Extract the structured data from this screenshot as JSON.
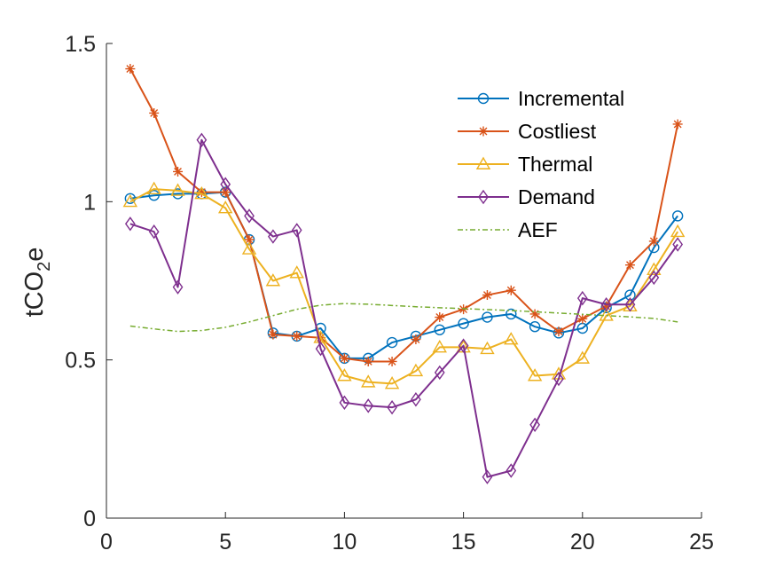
{
  "chart_data": {
    "type": "line",
    "xlabel": "",
    "ylabel_main": "tCO",
    "ylabel_sub": "2",
    "ylabel_tail": "e",
    "xlim": [
      0,
      25
    ],
    "ylim": [
      0,
      1.5
    ],
    "xticks": [
      0,
      5,
      10,
      15,
      20,
      25
    ],
    "yticks": [
      0,
      0.5,
      1,
      1.5
    ],
    "ytick_labels": [
      "0",
      "0.5",
      "1",
      "1.5"
    ],
    "grid": false,
    "legend_position": "top-right",
    "series": [
      {
        "name": "Incremental",
        "color": "#0072BD",
        "marker": "circle",
        "line": "solid",
        "x": [
          1,
          2,
          3,
          4,
          5,
          6,
          7,
          8,
          9,
          10,
          11,
          12,
          13,
          14,
          15,
          16,
          17,
          18,
          19,
          20,
          21,
          22,
          23,
          24
        ],
        "values": [
          1.01,
          1.02,
          1.025,
          1.025,
          1.03,
          0.88,
          0.585,
          0.575,
          0.6,
          0.505,
          0.505,
          0.555,
          0.575,
          0.595,
          0.615,
          0.635,
          0.645,
          0.605,
          0.585,
          0.6,
          0.665,
          0.705,
          0.855,
          0.955
        ]
      },
      {
        "name": "Costliest",
        "color": "#D95319",
        "marker": "asterisk",
        "line": "solid",
        "x": [
          1,
          2,
          3,
          4,
          5,
          6,
          7,
          8,
          9,
          10,
          11,
          12,
          13,
          14,
          15,
          16,
          17,
          18,
          19,
          20,
          21,
          22,
          23,
          24
        ],
        "values": [
          1.42,
          1.28,
          1.095,
          1.03,
          1.03,
          0.88,
          0.58,
          0.575,
          0.57,
          0.505,
          0.495,
          0.495,
          0.565,
          0.635,
          0.66,
          0.705,
          0.72,
          0.645,
          0.59,
          0.63,
          0.67,
          0.8,
          0.875,
          1.245
        ]
      },
      {
        "name": "Thermal",
        "color": "#EDB120",
        "marker": "triangle",
        "line": "solid",
        "x": [
          1,
          2,
          3,
          4,
          5,
          6,
          7,
          8,
          9,
          10,
          11,
          12,
          13,
          14,
          15,
          16,
          17,
          18,
          19,
          20,
          21,
          22,
          23,
          24
        ],
        "values": [
          1.0,
          1.04,
          1.035,
          1.025,
          0.98,
          0.85,
          0.75,
          0.775,
          0.57,
          0.45,
          0.43,
          0.425,
          0.465,
          0.54,
          0.54,
          0.535,
          0.565,
          0.45,
          0.455,
          0.505,
          0.64,
          0.67,
          0.785,
          0.905
        ]
      },
      {
        "name": "Demand",
        "color": "#7E2F8E",
        "marker": "diamond",
        "line": "solid",
        "x": [
          1,
          2,
          3,
          4,
          5,
          6,
          7,
          8,
          9,
          10,
          11,
          12,
          13,
          14,
          15,
          16,
          17,
          18,
          19,
          20,
          21,
          22,
          23,
          24
        ],
        "values": [
          0.93,
          0.905,
          0.73,
          1.195,
          1.055,
          0.955,
          0.89,
          0.91,
          0.535,
          0.365,
          0.355,
          0.35,
          0.375,
          0.46,
          0.545,
          0.13,
          0.15,
          0.295,
          0.44,
          0.695,
          0.675,
          0.675,
          0.76,
          0.865
        ]
      },
      {
        "name": "AEF",
        "color": "#77AC30",
        "marker": "none",
        "line": "dashdot",
        "x": [
          1,
          2,
          3,
          4,
          5,
          6,
          7,
          8,
          9,
          10,
          11,
          12,
          13,
          14,
          15,
          16,
          17,
          18,
          19,
          20,
          21,
          22,
          23,
          24
        ],
        "values": [
          0.607,
          0.598,
          0.59,
          0.593,
          0.603,
          0.62,
          0.64,
          0.66,
          0.673,
          0.678,
          0.676,
          0.672,
          0.668,
          0.665,
          0.662,
          0.659,
          0.656,
          0.652,
          0.648,
          0.644,
          0.64,
          0.636,
          0.631,
          0.62
        ]
      }
    ]
  }
}
